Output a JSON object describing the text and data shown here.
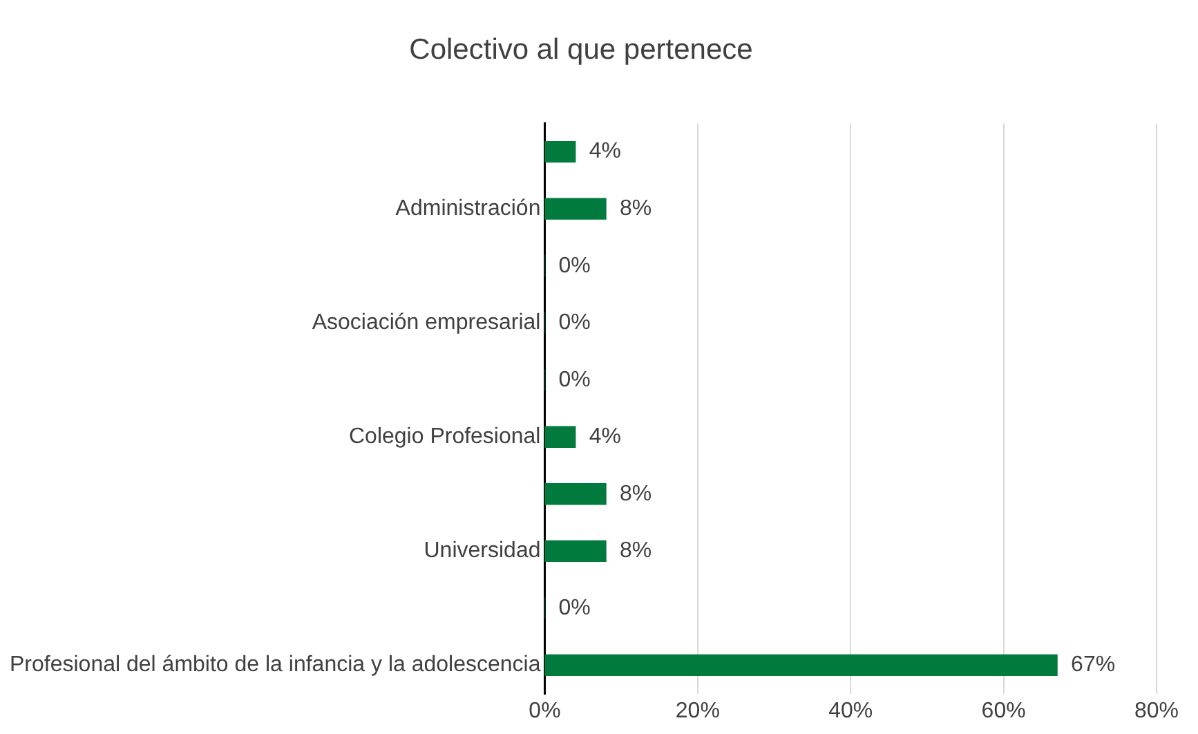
{
  "chart_data": {
    "type": "bar",
    "orientation": "horizontal",
    "title": "Colectivo al que pertenece",
    "categories": [
      null,
      "Administración",
      null,
      "Asociación empresarial",
      null,
      "Colegio Profesional",
      null,
      "Universidad",
      null,
      "Profesional del ámbito de la infancia y la adolescencia"
    ],
    "values": [
      4,
      8,
      0,
      0,
      0,
      4,
      8,
      8,
      0,
      67
    ],
    "value_labels": [
      "4%",
      "8%",
      "0%",
      "0%",
      "0%",
      "4%",
      "8%",
      "8%",
      "0%",
      "67%"
    ],
    "color": "#007a3d",
    "xlim": [
      0,
      80
    ],
    "xticks": [
      {
        "value": 0,
        "label": "0%"
      },
      {
        "value": 20,
        "label": "20%"
      },
      {
        "value": 40,
        "label": "40%"
      },
      {
        "value": 60,
        "label": "60%"
      },
      {
        "value": 80,
        "label": "80%"
      }
    ],
    "grid": "x",
    "legend": false
  }
}
